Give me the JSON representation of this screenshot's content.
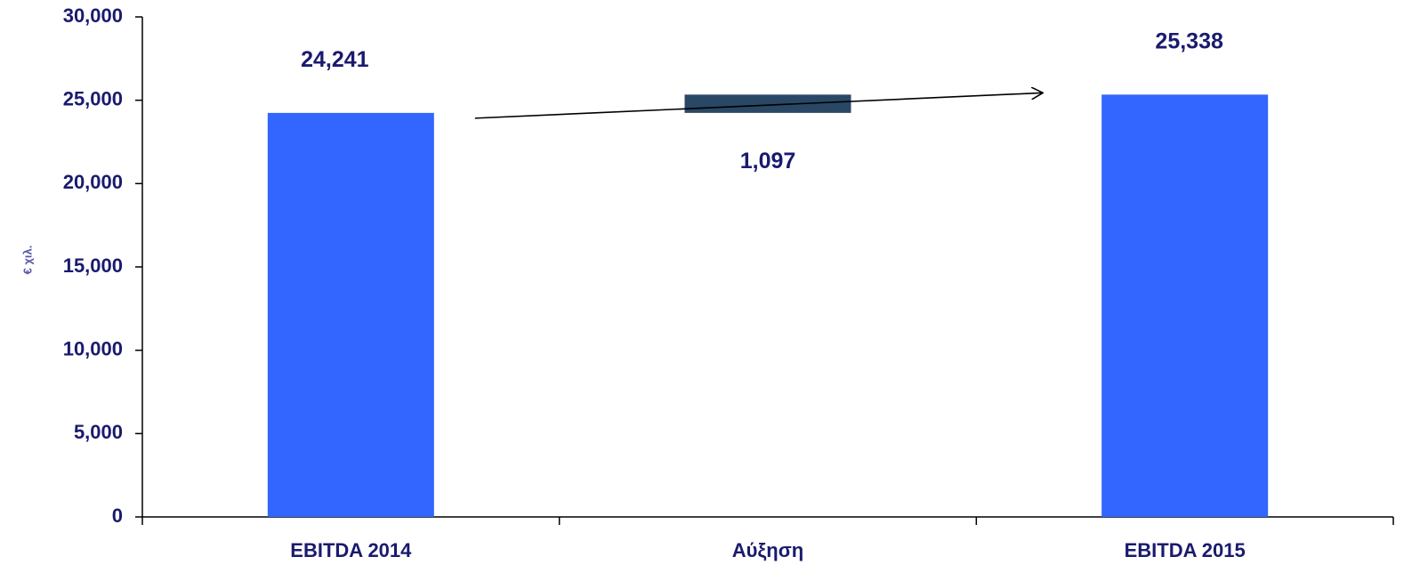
{
  "chart_data": {
    "type": "bar",
    "subtype": "waterfall",
    "ylabel": "€ χιλ.",
    "ylim": [
      0,
      30000
    ],
    "yticks": [
      "0",
      "5,000",
      "10,000",
      "15,000",
      "20,000",
      "25,000",
      "30,000"
    ],
    "ytick_values": [
      0,
      5000,
      10000,
      15000,
      20000,
      25000,
      30000
    ],
    "categories": [
      "EBITDA 2014",
      "Αύξηση",
      "EBITDA 2015"
    ],
    "bars": [
      {
        "category": "EBITDA 2014",
        "base": 0,
        "value": 24241,
        "label": "24,241",
        "color": "#3366ff"
      },
      {
        "category": "Αύξηση",
        "base": 24241,
        "value": 1097,
        "label": "1,097",
        "color": "#2a4766"
      },
      {
        "category": "EBITDA 2015",
        "base": 0,
        "value": 25338,
        "label": "25,338",
        "color": "#3366ff"
      }
    ],
    "arrow": {
      "from": "EBITDA 2014",
      "to": "EBITDA 2015"
    },
    "grid": false,
    "legend": "none",
    "colors": {
      "axis": "#000000",
      "text": "#1a1a6e",
      "ylabel": "#5555aa"
    }
  }
}
